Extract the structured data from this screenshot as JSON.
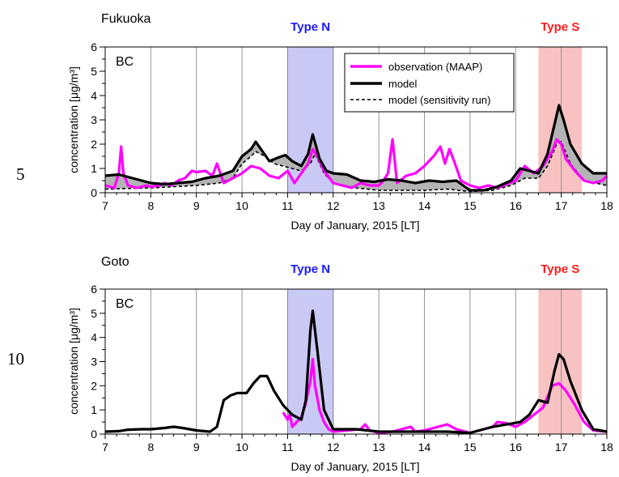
{
  "line_numbers": [
    "5",
    "10"
  ],
  "legend": {
    "observation": "observation (MAAP)",
    "model": "model",
    "sensitivity": "model (sensitivity run)"
  },
  "colors": {
    "observation": "#ff00ff",
    "model": "#000000",
    "type_n_band": "#c9c9f5",
    "type_s_band": "#f8c2c2",
    "type_n_text": "#1a1aff",
    "type_s_text": "#ff1a1a",
    "fill_gap": "#b4b4b4"
  },
  "chart_data": [
    {
      "type": "line",
      "title": "Fukuoka",
      "species": "BC",
      "xlabel": "Day of January, 2015 [LT]",
      "ylabel": "concentration [μg/m³]",
      "xlim": [
        7,
        18
      ],
      "ylim": [
        0,
        6
      ],
      "xticks": [
        "7",
        "8",
        "9",
        "10",
        "11",
        "12",
        "13",
        "14",
        "15",
        "16",
        "17",
        "18"
      ],
      "yticks": [
        "0",
        "1",
        "2",
        "3",
        "4",
        "5",
        "6"
      ],
      "grid": "vertical",
      "legend_position": "top-right",
      "shaded_regions": [
        {
          "label": "Type N",
          "x": [
            11.0,
            12.0
          ]
        },
        {
          "label": "Type S",
          "x": [
            16.5,
            17.45
          ]
        }
      ],
      "series": [
        {
          "name": "observation (MAAP)",
          "x": [
            7.0,
            7.2,
            7.3,
            7.35,
            7.4,
            7.5,
            7.7,
            7.9,
            8.0,
            8.2,
            8.3,
            8.45,
            8.6,
            8.75,
            8.9,
            9.0,
            9.2,
            9.35,
            9.45,
            9.6,
            9.8,
            10.0,
            10.2,
            10.4,
            10.6,
            10.8,
            11.0,
            11.15,
            11.3,
            11.45,
            11.55,
            11.65,
            11.8,
            12.0,
            12.2,
            12.4,
            12.6,
            12.8,
            13.0,
            13.1,
            13.2,
            13.3,
            13.4,
            13.6,
            13.8,
            14.0,
            14.2,
            14.35,
            14.45,
            14.55,
            14.65,
            14.8,
            15.0,
            15.2,
            15.4,
            15.6,
            15.8,
            16.0,
            16.2,
            16.4,
            16.6,
            16.8,
            16.9,
            17.0,
            17.1,
            17.3,
            17.5,
            17.7,
            17.9,
            18.0
          ],
          "y": [
            0.3,
            0.2,
            0.8,
            1.9,
            0.8,
            0.3,
            0.2,
            0.3,
            0.25,
            0.3,
            0.4,
            0.3,
            0.5,
            0.6,
            0.9,
            0.85,
            0.9,
            0.7,
            1.2,
            0.4,
            0.6,
            0.8,
            1.1,
            1.0,
            0.7,
            0.6,
            0.9,
            0.4,
            0.8,
            1.2,
            1.8,
            1.5,
            0.9,
            0.4,
            0.3,
            0.2,
            0.4,
            0.3,
            0.3,
            0.5,
            0.8,
            2.2,
            0.4,
            0.7,
            0.8,
            1.1,
            1.5,
            1.9,
            1.2,
            1.8,
            1.3,
            0.5,
            0.3,
            0.2,
            0.3,
            0.2,
            0.35,
            0.5,
            1.1,
            0.8,
            1.1,
            1.7,
            2.2,
            2.0,
            1.4,
            0.9,
            0.5,
            0.4,
            0.5,
            0.7
          ]
        },
        {
          "name": "model",
          "x": [
            7.0,
            7.3,
            7.6,
            7.8,
            8.0,
            8.3,
            8.6,
            8.9,
            9.2,
            9.5,
            9.8,
            10.0,
            10.2,
            10.3,
            10.45,
            10.6,
            10.8,
            10.95,
            11.1,
            11.3,
            11.45,
            11.55,
            11.7,
            11.85,
            12.0,
            12.3,
            12.6,
            12.9,
            13.2,
            13.5,
            13.8,
            14.1,
            14.4,
            14.7,
            15.0,
            15.3,
            15.6,
            15.9,
            16.1,
            16.3,
            16.5,
            16.7,
            16.85,
            16.95,
            17.05,
            17.2,
            17.45,
            17.7,
            18.0
          ],
          "y": [
            0.7,
            0.75,
            0.6,
            0.5,
            0.4,
            0.35,
            0.4,
            0.45,
            0.6,
            0.7,
            0.9,
            1.5,
            1.8,
            2.1,
            1.7,
            1.3,
            1.45,
            1.55,
            1.3,
            1.1,
            1.6,
            2.4,
            1.4,
            0.9,
            0.8,
            0.75,
            0.5,
            0.45,
            0.55,
            0.5,
            0.4,
            0.5,
            0.45,
            0.5,
            0.1,
            0.1,
            0.25,
            0.5,
            1.0,
            0.9,
            0.8,
            1.6,
            2.8,
            3.6,
            3.0,
            2.0,
            1.2,
            0.8,
            0.8
          ]
        },
        {
          "name": "model (sensitivity run)",
          "x": [
            7.0,
            8.0,
            8.5,
            9.0,
            9.5,
            9.8,
            10.0,
            10.2,
            10.3,
            10.5,
            10.7,
            10.9,
            11.1,
            11.3,
            11.5,
            11.6,
            11.8,
            12.0,
            12.5,
            13.0,
            13.5,
            14.0,
            14.5,
            15.0,
            15.5,
            15.9,
            16.2,
            16.5,
            16.7,
            16.9,
            17.0,
            17.2,
            17.5,
            18.0
          ],
          "y": [
            0.15,
            0.2,
            0.25,
            0.3,
            0.4,
            0.6,
            1.2,
            1.5,
            1.7,
            1.5,
            1.2,
            1.1,
            1.0,
            0.9,
            1.2,
            1.6,
            0.8,
            0.4,
            0.2,
            0.1,
            0.1,
            0.1,
            0.15,
            0.05,
            0.1,
            0.3,
            0.6,
            0.6,
            1.1,
            2.0,
            2.1,
            1.2,
            0.5,
            0.3
          ]
        }
      ]
    },
    {
      "type": "line",
      "title": "Goto",
      "species": "BC",
      "xlabel": "Day of January, 2015 [LT]",
      "ylabel": "concentration [μg/m³]",
      "xlim": [
        7,
        18
      ],
      "ylim": [
        0,
        6
      ],
      "xticks": [
        "7",
        "8",
        "9",
        "10",
        "11",
        "12",
        "13",
        "14",
        "15",
        "16",
        "17",
        "18"
      ],
      "yticks": [
        "0",
        "1",
        "2",
        "3",
        "4",
        "5",
        "6"
      ],
      "grid": "vertical",
      "shaded_regions": [
        {
          "label": "Type N",
          "x": [
            11.0,
            12.0
          ]
        },
        {
          "label": "Type S",
          "x": [
            16.5,
            17.45
          ]
        }
      ],
      "series": [
        {
          "name": "observation (MAAP)",
          "x": [
            10.9,
            11.0,
            11.05,
            11.1,
            11.2,
            11.3,
            11.4,
            11.5,
            11.55,
            11.6,
            11.7,
            11.8,
            11.9,
            12.0,
            12.3,
            12.6,
            12.7,
            12.8,
            13.0,
            13.3,
            13.5,
            13.7,
            13.8,
            14.0,
            14.3,
            14.5,
            14.7,
            15.0,
            15.3,
            15.5,
            15.6,
            15.8,
            16.0,
            16.2,
            16.4,
            16.6,
            16.8,
            16.95,
            17.1,
            17.3,
            17.5,
            17.7,
            18.0
          ],
          "y": [
            0.9,
            0.6,
            0.8,
            0.3,
            0.5,
            0.7,
            1.3,
            2.2,
            3.1,
            2.0,
            1.0,
            0.5,
            0.2,
            0.1,
            0.15,
            0.2,
            0.4,
            0.15,
            0.05,
            0.1,
            0.2,
            0.3,
            0.1,
            0.15,
            0.3,
            0.4,
            0.2,
            0.05,
            0.2,
            0.3,
            0.5,
            0.45,
            0.3,
            0.5,
            0.8,
            1.1,
            2.0,
            2.1,
            1.8,
            1.2,
            0.5,
            0.15,
            0.1
          ]
        },
        {
          "name": "model",
          "x": [
            7.0,
            7.3,
            7.5,
            7.8,
            8.0,
            8.3,
            8.5,
            8.7,
            9.0,
            9.3,
            9.45,
            9.6,
            9.75,
            9.9,
            10.1,
            10.25,
            10.4,
            10.55,
            10.7,
            10.9,
            11.1,
            11.3,
            11.4,
            11.5,
            11.55,
            11.65,
            11.8,
            12.0,
            12.5,
            13.0,
            13.5,
            14.0,
            14.5,
            15.0,
            15.5,
            15.8,
            16.1,
            16.3,
            16.5,
            16.7,
            16.85,
            16.95,
            17.05,
            17.2,
            17.45,
            17.7,
            18.0
          ],
          "y": [
            0.1,
            0.12,
            0.18,
            0.2,
            0.2,
            0.25,
            0.3,
            0.25,
            0.15,
            0.1,
            0.3,
            1.4,
            1.6,
            1.7,
            1.7,
            2.1,
            2.4,
            2.4,
            1.8,
            1.2,
            0.8,
            0.6,
            1.4,
            4.3,
            5.1,
            3.5,
            1.0,
            0.2,
            0.2,
            0.1,
            0.1,
            0.1,
            0.1,
            0.05,
            0.3,
            0.4,
            0.5,
            0.8,
            1.4,
            1.3,
            2.6,
            3.3,
            3.1,
            2.2,
            1.0,
            0.2,
            0.1
          ]
        }
      ]
    }
  ]
}
